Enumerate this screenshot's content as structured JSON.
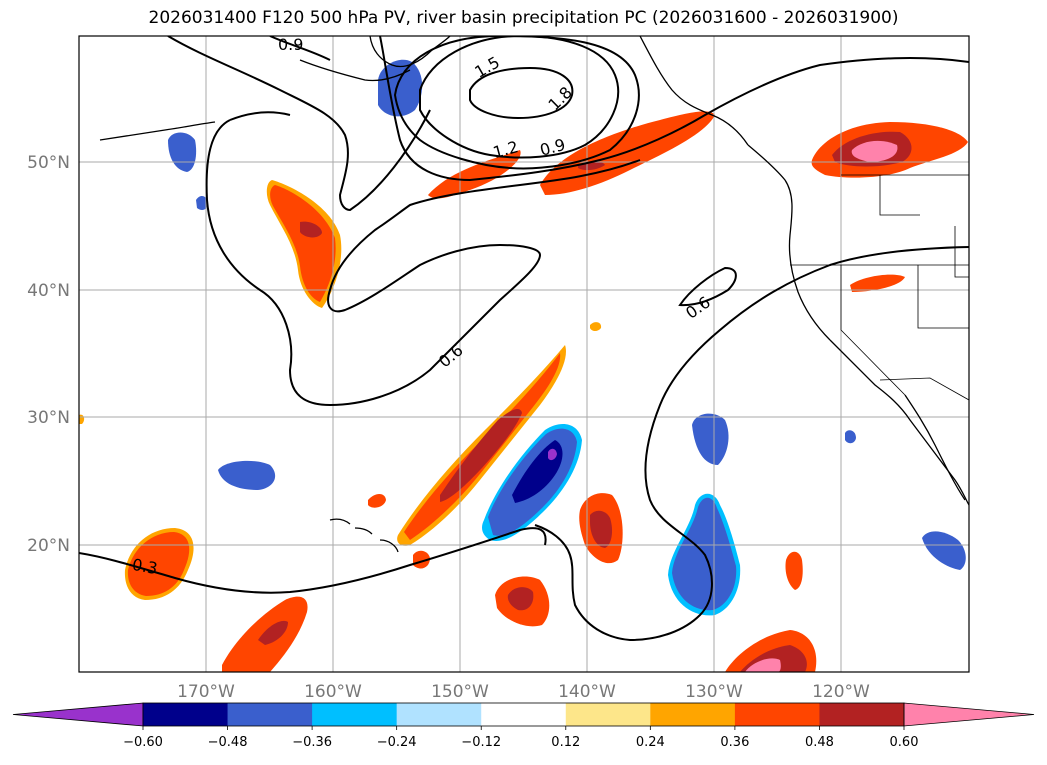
{
  "title": "2026031400 F120 500 hPa PV, river basin precipitation PC (2026031600 - 2026031900)",
  "lat_labels": [
    "50°N",
    "40°N",
    "30°N",
    "20°N"
  ],
  "lon_labels": [
    "170°W",
    "160°W",
    "150°W",
    "140°W",
    "130°W",
    "120°W"
  ],
  "pv_contour_labels": [
    "0.9",
    "1.5",
    "1.8",
    "1.2",
    "0.9",
    "0.6",
    "0.6",
    "0.3"
  ],
  "colorbar": {
    "ticks": [
      "−0.60",
      "−0.48",
      "−0.36",
      "−0.24",
      "−0.12",
      "0.12",
      "0.24",
      "0.36",
      "0.48",
      "0.60"
    ],
    "colors": [
      "#9932cc",
      "#00008b",
      "#3a5fcd",
      "#00bfff",
      "#b0e2ff",
      "#ffffff",
      "#fde68a",
      "#ffa500",
      "#ff4500",
      "#b22222",
      "#ff82ab"
    ]
  },
  "colors": {
    "red": "#ff4500",
    "darkred": "#b22222",
    "pink": "#ff82ab",
    "orange": "#ffa500",
    "yellow": "#fde68a",
    "blue": "#3a5fcd",
    "navy": "#00008b",
    "cyan": "#00bfff",
    "lightblue": "#b0e2ff",
    "purple": "#9932cc"
  }
}
